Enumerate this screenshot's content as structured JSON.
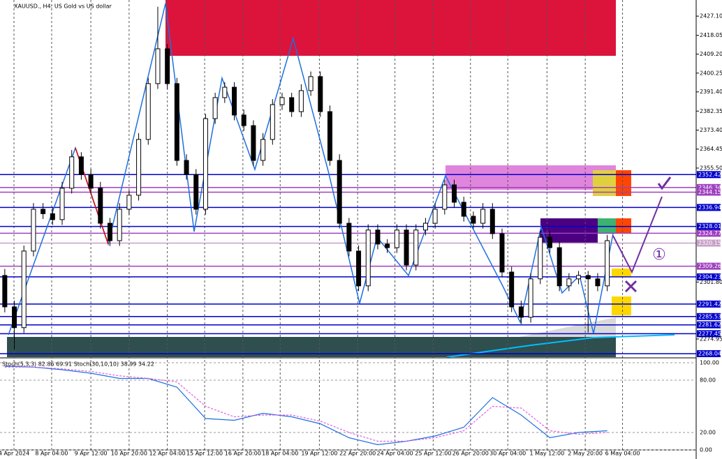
{
  "chart_data": {
    "type": "candlestick",
    "title": "XAUUSD., H4:  US Gold vs US dollar",
    "ylim": [
      2266.4,
      2434.7
    ],
    "yticks": [
      {
        "value": 2427.1,
        "label": "2427.10"
      },
      2418.05,
      {
        "value": 2409.2,
        "label": "2409.20"
      },
      2400.25,
      {
        "value": 2391.4,
        "label": "2391.40"
      },
      2382.35,
      {
        "value": 2373.4,
        "label": "2373.40"
      },
      2364.45,
      {
        "value": 2355.5,
        "label": "2355.50"
      },
      {
        "value": 2301.8,
        "label": "2301.80"
      },
      2274.95
    ],
    "xlim": [
      -0.5,
      72.3
    ],
    "xticks": [
      {
        "value": 0.96,
        "label": "4 Apr 2024"
      },
      {
        "value": 4.9,
        "label": "8 Apr 04:00"
      },
      {
        "value": 9,
        "label": "9 Apr 12:00"
      },
      {
        "value": 13,
        "label": "10 Apr 20:00"
      },
      {
        "value": 17,
        "label": "12 Apr 04:00"
      },
      {
        "value": 20.9,
        "label": "15 Apr 12:00"
      },
      {
        "value": 24.9,
        "label": "16 Apr 20:00"
      },
      {
        "value": 28.8,
        "label": "18 Apr 04:00"
      },
      {
        "value": 32.9,
        "label": "19 Apr 12:00"
      },
      {
        "value": 36.9,
        "label": "22 Apr 20:00"
      },
      {
        "value": 40.8,
        "label": "24 Apr 04:00"
      },
      {
        "value": 44.8,
        "label": "25 Apr 12:00"
      },
      {
        "value": 48.7,
        "label": "26 Apr 20:00"
      },
      {
        "value": 52.6,
        "label": "30 Apr 04:00"
      },
      {
        "value": 56.7,
        "label": "1 May 12:00"
      },
      {
        "value": 60.7,
        "label": "2 May 20:00"
      },
      {
        "value": 64.6,
        "label": "6 May 04:00"
      }
    ],
    "open": [
      2304.9,
      2290.1,
      2280.3,
      2316.4,
      2336.1,
      2334.0,
      2331.2,
      2346.0,
      2360.8,
      2352.5,
      2346.0,
      2329.5,
      2321.3,
      2336.1,
      2342.7,
      2369.0,
      2395.3,
      2411.7,
      2395.3,
      2359.1,
      2352.5,
      2336.1,
      2378.8,
      2388.7,
      2393.6,
      2380.5,
      2375.5,
      2359.1,
      2369.0,
      2385.4,
      2388.7,
      2382.1,
      2392.0,
      2398.6,
      2382.1,
      2359.1,
      2329.5,
      2316.4,
      2300.0,
      2326.3,
      2319.7,
      2318.0,
      2326.3,
      2309.8,
      2326.3,
      2329.5,
      2336.1,
      2347.6,
      2339.4,
      2332.8,
      2329.5,
      2336.1,
      2324.6,
      2306.5,
      2290.1,
      2285.2,
      2303.3,
      2322.9,
      2318.0,
      2300.0,
      2303.3,
      2304.9,
      2303.3,
      2300.0
    ],
    "high": [
      2308.0,
      2293.0,
      2319.0,
      2339.0,
      2339.0,
      2337.0,
      2349.0,
      2364.0,
      2363.0,
      2355.0,
      2349.0,
      2332.0,
      2339.0,
      2345.0,
      2372.0,
      2398.0,
      2431.5,
      2414.0,
      2398.0,
      2362.0,
      2355.0,
      2381.0,
      2391.0,
      2396.0,
      2396.0,
      2383.0,
      2378.0,
      2372.0,
      2388.0,
      2391.0,
      2391.0,
      2395.0,
      2401.0,
      2401.0,
      2385.0,
      2362.0,
      2332.0,
      2319.0,
      2329.0,
      2329.0,
      2322.0,
      2329.0,
      2329.0,
      2329.0,
      2332.0,
      2339.0,
      2350.0,
      2350.0,
      2342.0,
      2335.0,
      2339.0,
      2339.0,
      2327.0,
      2309.0,
      2293.0,
      2306.0,
      2326.0,
      2326.0,
      2321.0,
      2306.0,
      2307.0,
      2307.0,
      2306.0,
      2324.0
    ],
    "low": [
      2287.5,
      2270.0,
      2277.8,
      2313.9,
      2331.5,
      2328.7,
      2328.7,
      2343.5,
      2350.0,
      2343.5,
      2327.0,
      2318.8,
      2318.8,
      2333.6,
      2340.2,
      2366.5,
      2392.8,
      2392.8,
      2356.6,
      2350.0,
      2333.6,
      2333.6,
      2376.3,
      2386.2,
      2378.0,
      2373.0,
      2356.6,
      2356.6,
      2366.5,
      2382.9,
      2379.6,
      2379.6,
      2389.5,
      2379.6,
      2356.6,
      2327.0,
      2313.9,
      2297.5,
      2297.5,
      2317.2,
      2315.5,
      2315.5,
      2307.3,
      2307.3,
      2323.8,
      2327.0,
      2333.6,
      2336.9,
      2330.3,
      2327.0,
      2327.0,
      2322.1,
      2304.0,
      2287.6,
      2282.0,
      2282.7,
      2300.8,
      2315.5,
      2297.5,
      2297.5,
      2300.8,
      2278.0,
      2297.5,
      2297.5
    ],
    "close": [
      2290.1,
      2280.3,
      2316.4,
      2336.1,
      2334.0,
      2331.2,
      2346.0,
      2360.8,
      2352.5,
      2346.0,
      2329.5,
      2321.3,
      2336.1,
      2342.7,
      2369.0,
      2395.3,
      2411.7,
      2395.3,
      2359.1,
      2352.5,
      2336.1,
      2378.8,
      2388.7,
      2393.6,
      2380.5,
      2375.5,
      2359.1,
      2369.0,
      2385.4,
      2388.7,
      2382.1,
      2392.0,
      2398.6,
      2382.1,
      2359.1,
      2329.5,
      2316.4,
      2300.0,
      2326.3,
      2319.7,
      2318.0,
      2326.3,
      2309.8,
      2326.3,
      2329.5,
      2336.1,
      2347.6,
      2339.4,
      2332.8,
      2329.5,
      2336.1,
      2324.6,
      2306.5,
      2290.1,
      2285.2,
      2303.3,
      2322.9,
      2318.0,
      2300.0,
      2303.3,
      2304.9,
      2303.3,
      2300.0,
      2321.3
    ],
    "levels": [
      {
        "value": 2352.42,
        "color": "#0000cc"
      },
      {
        "value": 2346.34,
        "color": "#a040c0"
      },
      {
        "value": 2344.15,
        "color": "#a040c0"
      },
      {
        "value": 2336.94,
        "color": "#0000cc"
      },
      {
        "value": 2328.01,
        "color": "#0000cc"
      },
      {
        "value": 2324.77,
        "color": "#a040c0"
      },
      {
        "value": 2320.15,
        "color": "#c8a0c8"
      },
      {
        "value": 2309.26,
        "color": "#a040c0"
      },
      {
        "value": 2304.23,
        "color": "#0000cc"
      },
      {
        "value": 2291.42,
        "color": "#0000cc"
      },
      {
        "value": 2285.53,
        "color": "#0000cc"
      },
      {
        "value": 2281.62,
        "color": "#0000cc"
      },
      {
        "value": 2277.45,
        "color": "#0000cc"
      },
      {
        "value": 2268.04,
        "color": "#0000cc"
      }
    ],
    "annotation": "①",
    "indicator": {
      "title": "Stoch(5,3,3) 82.86 69.91 Stoch(30,10,10) 38.99 34.22",
      "ylim": [
        0,
        100
      ],
      "yticks": [
        {
          "value": 100,
          "label": "100.00"
        },
        {
          "value": 80,
          "label": "80.00"
        },
        {
          "value": 20,
          "label": "20.00"
        },
        {
          "value": 0,
          "label": "0.00"
        }
      ],
      "x": [
        0,
        3,
        6,
        9,
        12,
        15,
        18,
        21,
        24,
        27,
        30,
        33,
        36,
        39,
        42,
        45,
        48,
        51,
        54,
        57,
        60,
        63
      ],
      "series": [
        {
          "color": "#1e6fe0",
          "values": [
            96,
            95,
            92,
            88,
            82,
            82,
            72,
            36,
            34,
            42,
            38,
            30,
            14,
            6,
            10,
            16,
            26,
            60,
            40,
            14,
            20,
            22
          ]
        },
        {
          "color": "#e060e0",
          "values": [
            95,
            95,
            93,
            90,
            85,
            82,
            78,
            50,
            38,
            40,
            40,
            33,
            20,
            10,
            10,
            14,
            22,
            50,
            48,
            22,
            18,
            20
          ]
        }
      ]
    }
  }
}
